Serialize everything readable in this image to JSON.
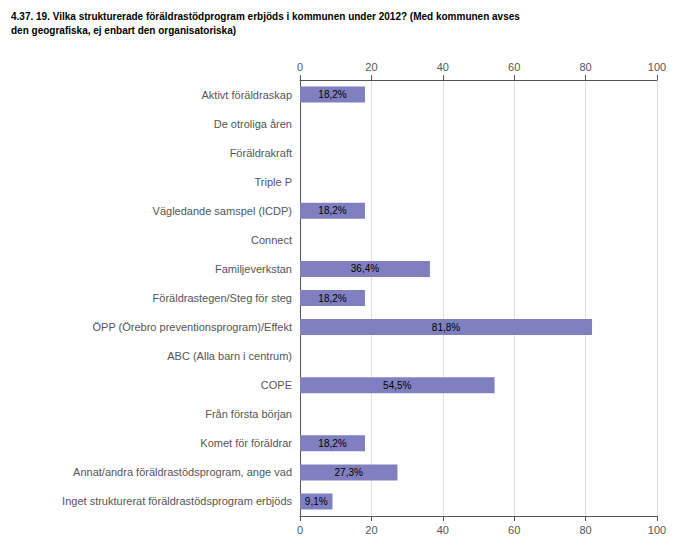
{
  "chart_data": {
    "type": "bar",
    "orientation": "horizontal",
    "title": "4.37. 19. Vilka strukturerade föräldrastödprogram erbjöds i kommunen under 2012? (Med kommunen avses",
    "subtitle": "den geografiska, ej enbart den organisatoriska)",
    "categories": [
      "Aktivt föräldraskap",
      "De otroliga åren",
      "Föräldrakraft",
      "Triple P",
      "Vägledande samspel (ICDP)",
      "Connect",
      "Familjeverkstan",
      "Föräldrastegen/Steg för steg",
      "ÖPP (Örebro preventionsprogram)/Effekt",
      "ABC (Alla barn i centrum)",
      "COPE",
      "Från första början",
      "Komet för föräldrar",
      "Annat/andra föräldrastödsprogram, ange vad",
      "Inget strukturerat föräldrastödsprogram erbjöds"
    ],
    "values": [
      18.2,
      0,
      0,
      0,
      18.2,
      0,
      36.4,
      18.2,
      81.8,
      0,
      54.5,
      0,
      18.2,
      27.3,
      9.1
    ],
    "value_labels": [
      "18,2%",
      null,
      null,
      null,
      "18,2%",
      null,
      "36,4%",
      "18,2%",
      "81,8%",
      null,
      "54,5%",
      null,
      "18,2%",
      "27,3%",
      "9,1%"
    ],
    "data_labels": true,
    "color": "#8080c0",
    "xlim": [
      0,
      100
    ],
    "xticks": [
      0,
      20,
      40,
      60,
      80,
      100
    ],
    "grid": true
  }
}
